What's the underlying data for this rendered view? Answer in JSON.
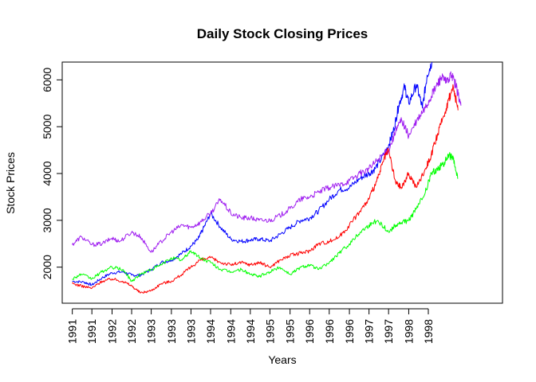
{
  "chart_data": {
    "type": "line",
    "title": "Daily Stock Closing Prices",
    "xlabel": "Years",
    "ylabel": "Stock Prices",
    "x_tick_labels": [
      "1991",
      "1991",
      "1992",
      "1992",
      "1993",
      "1993",
      "1993",
      "1994",
      "1994",
      "1994",
      "1995",
      "1995",
      "1996",
      "1996",
      "1996",
      "1997",
      "1997",
      "1998",
      "1998"
    ],
    "x_tick_positions": [
      1991.5,
      1991.83,
      1992.17,
      1992.5,
      1992.83,
      1993.17,
      1993.5,
      1993.83,
      1994.17,
      1994.5,
      1994.83,
      1995.17,
      1995.5,
      1995.83,
      1996.17,
      1996.5,
      1996.83,
      1997.17,
      1997.5
    ],
    "y_ticks": [
      2000,
      3000,
      4000,
      5000,
      6000
    ],
    "xlim": [
      1991.33,
      1998.75
    ],
    "ylim": [
      1230,
      6380
    ],
    "grid": false,
    "legend": "none",
    "series": [
      {
        "color": "#0000ff",
        "x": [
          1991.5,
          1991.7,
          1991.83,
          1992.0,
          1992.17,
          1992.35,
          1992.5,
          1992.65,
          1992.83,
          1993.0,
          1993.17,
          1993.35,
          1993.5,
          1993.62,
          1993.7,
          1993.83,
          1994.0,
          1994.17,
          1994.35,
          1994.5,
          1994.65,
          1994.83,
          1995.0,
          1995.17,
          1995.35,
          1995.5,
          1995.65,
          1995.83,
          1996.0,
          1996.17,
          1996.35,
          1996.5,
          1996.6,
          1996.75,
          1996.83,
          1996.92,
          1997.0,
          1997.1,
          1997.17,
          1997.3,
          1997.4,
          1997.48,
          1997.56
        ],
        "y": [
          1700,
          1680,
          1620,
          1770,
          1880,
          1900,
          1830,
          1830,
          1950,
          2100,
          2150,
          2300,
          2450,
          2600,
          2800,
          3150,
          2850,
          2600,
          2550,
          2580,
          2600,
          2560,
          2700,
          2850,
          3000,
          3050,
          3200,
          3450,
          3650,
          3700,
          3900,
          4000,
          4100,
          4400,
          4600,
          4950,
          5450,
          5850,
          5500,
          5900,
          5400,
          6100,
          6380
        ]
      },
      {
        "color": "#a020f0",
        "x": [
          1991.5,
          1991.65,
          1991.83,
          1992.0,
          1992.17,
          1992.3,
          1992.5,
          1992.65,
          1992.83,
          1993.0,
          1993.17,
          1993.35,
          1993.5,
          1993.65,
          1993.83,
          1994.0,
          1994.17,
          1994.35,
          1994.5,
          1994.65,
          1994.83,
          1995.0,
          1995.17,
          1995.35,
          1995.5,
          1995.65,
          1995.83,
          1996.0,
          1996.17,
          1996.35,
          1996.5,
          1996.65,
          1996.83,
          1996.95,
          1997.05,
          1997.17,
          1997.3,
          1997.45,
          1997.55,
          1997.65,
          1997.72,
          1997.8,
          1997.9,
          1997.97,
          1998.05
        ],
        "y": [
          2480,
          2650,
          2480,
          2500,
          2620,
          2550,
          2750,
          2650,
          2320,
          2550,
          2750,
          2900,
          2850,
          2950,
          3150,
          3450,
          3150,
          3050,
          3050,
          3000,
          3000,
          3100,
          3250,
          3450,
          3500,
          3600,
          3700,
          3750,
          3850,
          4000,
          4100,
          4300,
          4500,
          4900,
          5150,
          4800,
          5100,
          5400,
          5650,
          5900,
          6050,
          5950,
          6100,
          5850,
          5450
        ]
      },
      {
        "color": "#ff0000",
        "x": [
          1991.5,
          1991.65,
          1991.83,
          1992.0,
          1992.17,
          1992.35,
          1992.5,
          1992.65,
          1992.83,
          1993.0,
          1993.17,
          1993.35,
          1993.5,
          1993.65,
          1993.83,
          1994.0,
          1994.17,
          1994.35,
          1994.5,
          1994.65,
          1994.83,
          1995.0,
          1995.17,
          1995.35,
          1995.5,
          1995.65,
          1995.83,
          1996.0,
          1996.17,
          1996.35,
          1996.5,
          1996.65,
          1996.75,
          1996.83,
          1996.95,
          1997.05,
          1997.17,
          1997.3,
          1997.45,
          1997.55,
          1997.65,
          1997.75,
          1997.85,
          1997.92,
          1998.0
        ],
        "y": [
          1650,
          1600,
          1550,
          1700,
          1750,
          1700,
          1600,
          1450,
          1500,
          1650,
          1700,
          1850,
          2000,
          2150,
          2200,
          2100,
          2050,
          2100,
          2050,
          2100,
          2000,
          2150,
          2250,
          2300,
          2350,
          2500,
          2550,
          2650,
          2900,
          3200,
          3450,
          3900,
          4300,
          4500,
          3800,
          3700,
          4000,
          3700,
          4100,
          4400,
          4800,
          5200,
          5600,
          5850,
          5350
        ]
      },
      {
        "color": "#00ff00",
        "x": [
          1991.5,
          1991.65,
          1991.83,
          1992.0,
          1992.17,
          1992.35,
          1992.5,
          1992.65,
          1992.83,
          1993.0,
          1993.17,
          1993.35,
          1993.5,
          1993.65,
          1993.83,
          1994.0,
          1994.17,
          1994.35,
          1994.5,
          1994.65,
          1994.83,
          1995.0,
          1995.17,
          1995.35,
          1995.5,
          1995.65,
          1995.83,
          1996.0,
          1996.17,
          1996.35,
          1996.5,
          1996.65,
          1996.83,
          1996.95,
          1997.05,
          1997.17,
          1997.3,
          1997.45,
          1997.55,
          1997.65,
          1997.75,
          1997.85,
          1997.92,
          1998.0
        ],
        "y": [
          1750,
          1850,
          1750,
          1900,
          2000,
          1950,
          1700,
          1850,
          1950,
          2050,
          2200,
          2150,
          2350,
          2200,
          2100,
          1950,
          1900,
          1950,
          1850,
          1800,
          1900,
          2000,
          1850,
          2000,
          2050,
          1950,
          2100,
          2300,
          2500,
          2750,
          2900,
          3000,
          2750,
          2900,
          2950,
          3000,
          3250,
          3600,
          4000,
          4100,
          4200,
          4400,
          4300,
          3900
        ]
      }
    ]
  }
}
